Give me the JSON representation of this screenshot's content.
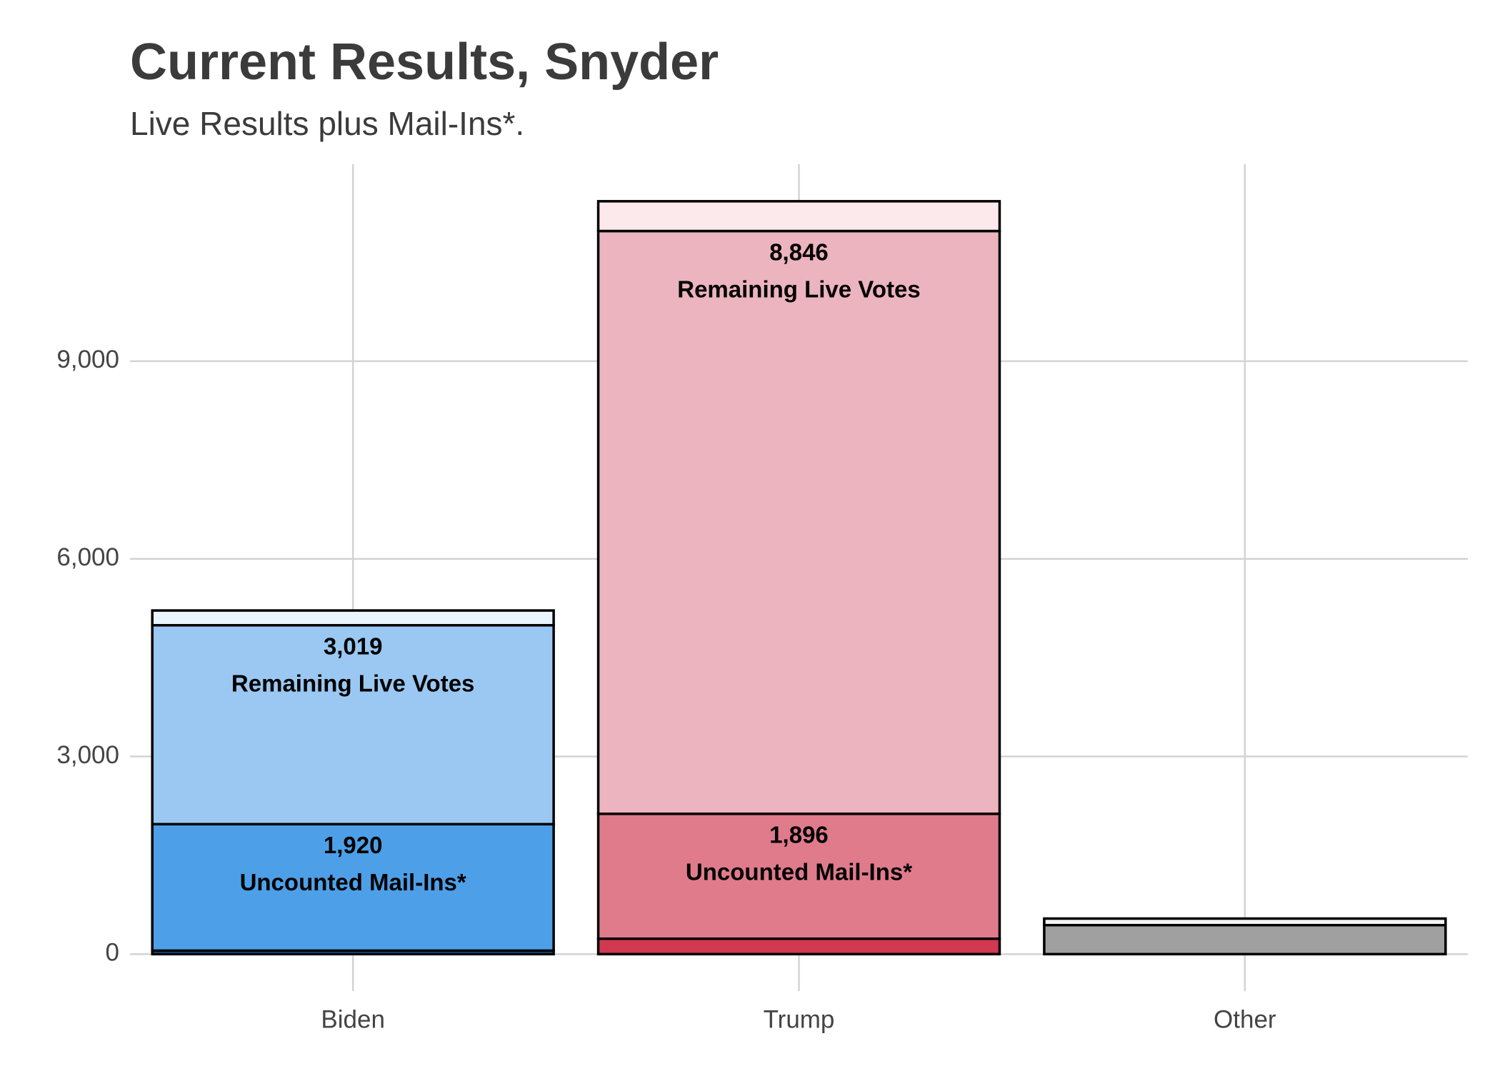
{
  "chart_data": {
    "type": "stacked_bar",
    "title": "Current Results, Snyder",
    "subtitle": "Live Results plus Mail-Ins*.",
    "categories": [
      "Biden",
      "Trump",
      "Other"
    ],
    "series": [
      {
        "colors": [
          "#1f5fa8",
          "#d0394f",
          "#a0a0a0"
        ],
        "values": [
          53,
          234,
          440
        ]
      },
      {
        "name": "Uncounted Mail-Ins*",
        "colors": [
          "#4da0e8",
          "#e07b8c",
          "#cccccc"
        ],
        "values": [
          1920,
          1896,
          null
        ],
        "value_labels": [
          "1,920",
          "1,896",
          null
        ]
      },
      {
        "name": "Remaining Live Votes",
        "colors": [
          "#9ac8f2",
          "#ecb4be",
          "#dddddd"
        ],
        "values": [
          3019,
          8846,
          null
        ],
        "value_labels": [
          "3,019",
          "8,846",
          null
        ]
      },
      {
        "colors": [
          "#eaf4fd",
          "#fbe9ec",
          "#f2f2f2"
        ],
        "values": [
          224,
          452,
          100
        ]
      }
    ],
    "ylim": [
      -560,
      11990
    ],
    "yticks": [
      0,
      {
        "value": 3000,
        "label": "3,000"
      },
      {
        "value": 6000,
        "label": "6,000"
      },
      {
        "value": 9000,
        "label": "9,000"
      }
    ],
    "grid": true
  }
}
